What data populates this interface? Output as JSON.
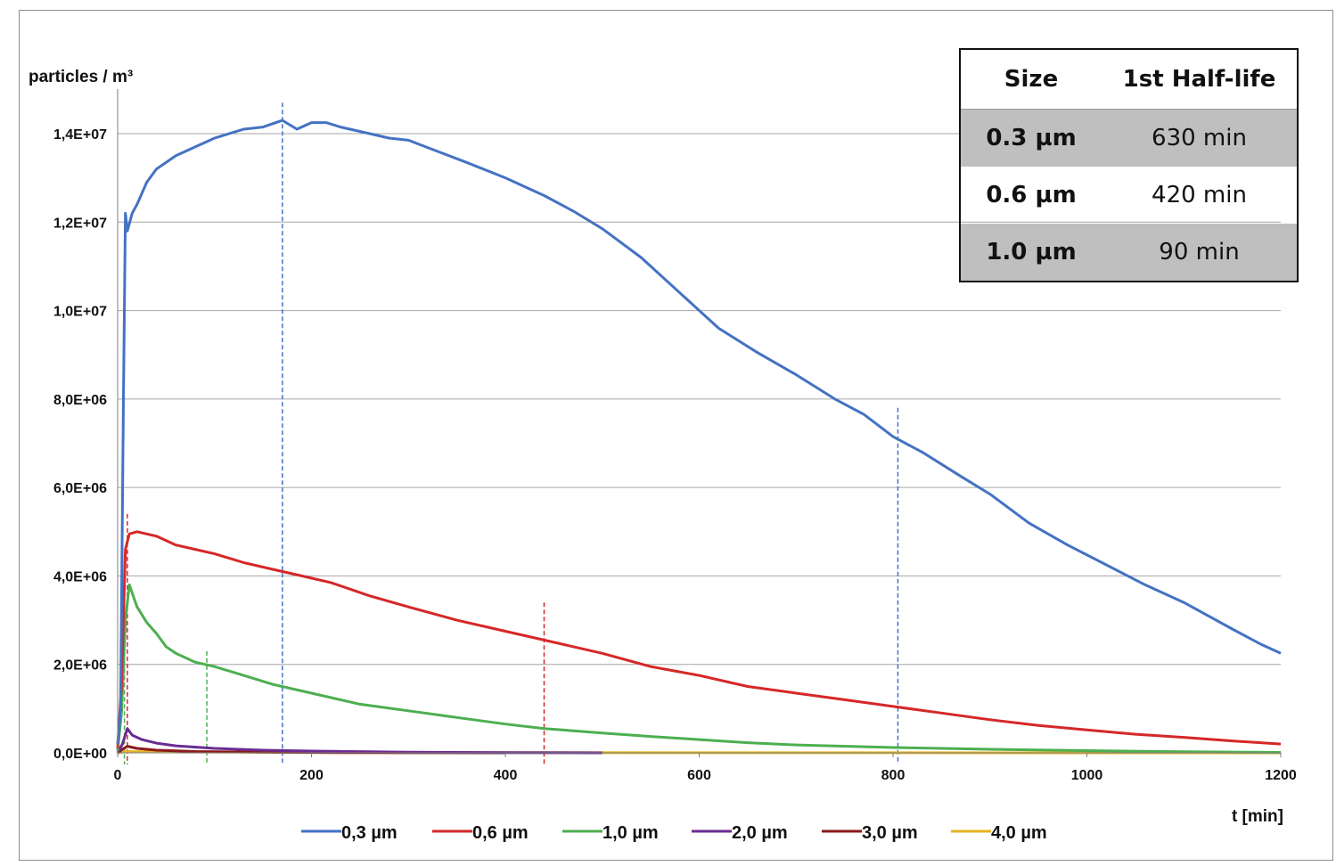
{
  "chart_data": {
    "type": "line",
    "ylabel": "particles / m³",
    "xlabel": "t [min]",
    "xlim": [
      0,
      1200
    ],
    "ylim": [
      0,
      14000000
    ],
    "x_ticks": [
      "0",
      "200",
      "400",
      "600",
      "800",
      "1000",
      "1200"
    ],
    "y_ticks": [
      "0,0E+00",
      "2,0E+06",
      "4,0E+06",
      "6,0E+06",
      "8,0E+06",
      "1,0E+07",
      "1,2E+07",
      "1,4E+07"
    ],
    "grid": "horizontal",
    "legend_position": "bottom",
    "series": [
      {
        "name": "0,3 µm",
        "color": "#4472c4",
        "x": [
          0,
          3,
          6,
          8,
          10,
          15,
          20,
          30,
          40,
          60,
          80,
          100,
          130,
          150,
          170,
          185,
          200,
          215,
          230,
          260,
          280,
          300,
          330,
          360,
          400,
          440,
          470,
          500,
          540,
          580,
          620,
          660,
          700,
          740,
          770,
          800,
          830,
          870,
          900,
          940,
          980,
          1020,
          1060,
          1100,
          1150,
          1180,
          1200
        ],
        "y": [
          200000,
          1000000,
          8000000,
          12200000,
          11800000,
          12200000,
          12400000,
          12900000,
          13200000,
          13500000,
          13700000,
          13900000,
          14100000,
          14150000,
          14300000,
          14100000,
          14250000,
          14250000,
          14150000,
          14000000,
          13900000,
          13850000,
          13600000,
          13350000,
          13000000,
          12600000,
          12250000,
          11850000,
          11200000,
          10400000,
          9600000,
          9050000,
          8550000,
          8000000,
          7650000,
          7150000,
          6800000,
          6250000,
          5850000,
          5200000,
          4700000,
          4250000,
          3800000,
          3400000,
          2800000,
          2450000,
          2250000
        ]
      },
      {
        "name": "0,6 µm",
        "color": "#d62728",
        "x": [
          0,
          4,
          8,
          12,
          20,
          30,
          40,
          60,
          80,
          100,
          130,
          160,
          190,
          220,
          260,
          300,
          350,
          400,
          440,
          500,
          550,
          600,
          650,
          700,
          750,
          800,
          850,
          900,
          950,
          1000,
          1050,
          1100,
          1150,
          1200
        ],
        "y": [
          100000,
          1500000,
          4600000,
          4950000,
          5000000,
          4950000,
          4900000,
          4700000,
          4600000,
          4500000,
          4300000,
          4150000,
          4000000,
          3850000,
          3550000,
          3300000,
          3000000,
          2750000,
          2550000,
          2250000,
          1950000,
          1750000,
          1500000,
          1350000,
          1200000,
          1050000,
          900000,
          750000,
          620000,
          520000,
          420000,
          350000,
          270000,
          200000
        ]
      },
      {
        "name": "1,0 µm",
        "color": "#4caf50",
        "x": [
          0,
          4,
          8,
          12,
          20,
          30,
          40,
          50,
          60,
          80,
          100,
          130,
          160,
          200,
          250,
          300,
          350,
          400,
          440,
          500,
          550,
          600,
          650,
          700,
          800,
          900,
          1000,
          1100,
          1200
        ],
        "y": [
          50000,
          900000,
          3000000,
          3800000,
          3300000,
          2950000,
          2700000,
          2400000,
          2250000,
          2050000,
          1950000,
          1750000,
          1550000,
          1350000,
          1100000,
          950000,
          800000,
          650000,
          550000,
          450000,
          370000,
          300000,
          230000,
          180000,
          120000,
          80000,
          50000,
          25000,
          10000
        ]
      },
      {
        "name": "2,0 µm",
        "color": "#6a2c91",
        "x": [
          0,
          5,
          10,
          15,
          25,
          40,
          60,
          100,
          150,
          200,
          300,
          400,
          500
        ],
        "y": [
          0,
          200000,
          550000,
          400000,
          300000,
          220000,
          160000,
          100000,
          60000,
          40000,
          15000,
          5000,
          0
        ]
      },
      {
        "name": "3,0 µm",
        "color": "#8b1a1a",
        "x": [
          0,
          5,
          10,
          20,
          40,
          80,
          150,
          250,
          400
        ],
        "y": [
          0,
          80000,
          150000,
          100000,
          60000,
          30000,
          15000,
          5000,
          0
        ]
      },
      {
        "name": "4,0 µm",
        "color": "#e6b422",
        "x": [
          0,
          10,
          50,
          200,
          600,
          1200
        ],
        "y": [
          0,
          30000,
          20000,
          8000,
          2000,
          0
        ]
      }
    ],
    "markers": [
      {
        "x": 170,
        "top": 14700000,
        "color": "#4472c4"
      },
      {
        "x": 805,
        "top": 7800000,
        "color": "#4472c4"
      },
      {
        "x": 440,
        "top": 3400000,
        "color": "#d62728"
      },
      {
        "x": 10,
        "top": 5400000,
        "color": "#d62728"
      },
      {
        "x": 92,
        "top": 2300000,
        "color": "#4caf50"
      },
      {
        "x": 7,
        "top": 4000000,
        "color": "#4caf50"
      }
    ]
  },
  "table": {
    "headers": [
      "Size",
      "1st Half-life"
    ],
    "rows": [
      {
        "size": "0.3 µm",
        "half_life": "630  min"
      },
      {
        "size": "0.6 µm",
        "half_life": "420  min"
      },
      {
        "size": "1.0 µm",
        "half_life": "90  min"
      }
    ]
  }
}
